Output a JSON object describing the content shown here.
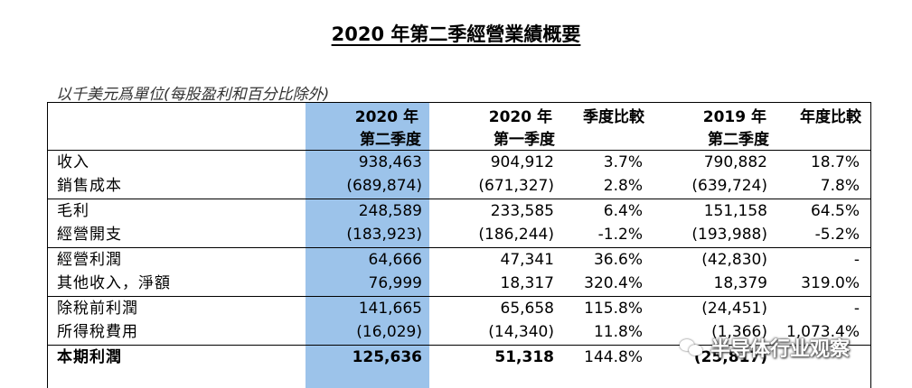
{
  "title": "2020 年第二季經營業績概要",
  "unit_note": "以千美元爲單位(每股盈利和百分比除外)",
  "headers": {
    "col1": [
      "2020 年",
      "第二季度"
    ],
    "col2": [
      "2020 年",
      "第一季度"
    ],
    "col3": [
      "季度比較"
    ],
    "col4": [
      "2019 年",
      "第二季度"
    ],
    "col5": [
      "年度比較"
    ]
  },
  "rows": [
    {
      "label": "收入",
      "q2_2020": "938,463",
      "q1_2020": "904,912",
      "qoq": "3.7%",
      "q2_2019": "790,882",
      "yoy": "18.7%"
    },
    {
      "label": "銷售成本",
      "q2_2020": "(689,874)",
      "q1_2020": "(671,327)",
      "qoq": "2.8%",
      "q2_2019": "(639,724)",
      "yoy": "7.8%"
    },
    {
      "label": "毛利",
      "q2_2020": "248,589",
      "q1_2020": "233,585",
      "qoq": "6.4%",
      "q2_2019": "151,158",
      "yoy": "64.5%"
    },
    {
      "label": "經營開支",
      "q2_2020": "(183,923)",
      "q1_2020": "(186,244)",
      "qoq": "-1.2%",
      "q2_2019": "(193,988)",
      "yoy": "-5.2%"
    },
    {
      "label": "經營利潤",
      "q2_2020": "64,666",
      "q1_2020": "47,341",
      "qoq": "36.6%",
      "q2_2019": "(42,830)",
      "yoy": "-"
    },
    {
      "label": "其他收入，淨額",
      "q2_2020": "76,999",
      "q1_2020": "18,317",
      "qoq": "320.4%",
      "q2_2019": "18,379",
      "yoy": "319.0%"
    },
    {
      "label": "除稅前利潤",
      "q2_2020": "141,665",
      "q1_2020": "65,658",
      "qoq": "115.8%",
      "q2_2019": "(24,451)",
      "yoy": "-"
    },
    {
      "label": "所得稅費用",
      "q2_2020": "(16,029)",
      "q1_2020": "(14,340)",
      "qoq": "11.8%",
      "q2_2019": "(1,366)",
      "yoy": "1,073.4%"
    },
    {
      "label": "本期利潤",
      "q2_2020": "125,636",
      "q1_2020": "51,318",
      "qoq": "144.8%",
      "q2_2019": "(25,817)",
      "yoy": ""
    }
  ],
  "watermark": "半导体行业观察"
}
